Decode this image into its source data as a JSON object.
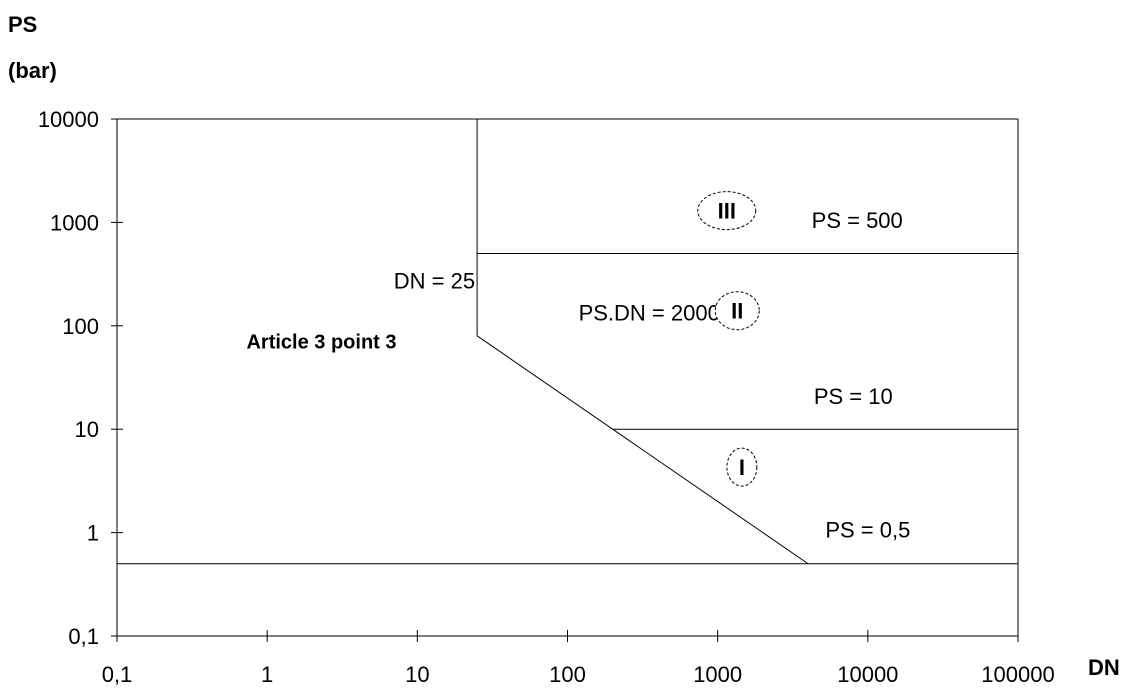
{
  "chart_data": {
    "type": "line",
    "ylabel_line1": "PS",
    "ylabel_line2": "(bar)",
    "xlabel": "DN",
    "x_scale": "log",
    "y_scale": "log",
    "xlim": [
      0.1,
      100000
    ],
    "ylim": [
      0.1,
      10000
    ],
    "x_tick_values": [
      0.1,
      1,
      10,
      100,
      1000,
      10000,
      100000
    ],
    "x_tick_labels": [
      "0,1",
      "1",
      "10",
      "100",
      "1000",
      "10000",
      "100000"
    ],
    "y_tick_values": [
      0.1,
      1,
      10,
      100,
      1000,
      10000
    ],
    "y_tick_labels": [
      "0,1",
      "1",
      "10",
      "100",
      "1000",
      "10000"
    ],
    "grid": false,
    "lines": [
      {
        "x": [
          0.1,
          100000
        ],
        "y": [
          0.5,
          0.5
        ]
      },
      {
        "x": [
          25,
          25
        ],
        "y": [
          80,
          10000
        ]
      },
      {
        "x": [
          25,
          4000
        ],
        "y": [
          80,
          0.5
        ]
      },
      {
        "x": [
          200,
          100000
        ],
        "y": [
          10,
          10
        ]
      },
      {
        "x": [
          25,
          100000
        ],
        "y": [
          500,
          500
        ]
      }
    ],
    "annotations": [
      {
        "text": "PS = 500",
        "x": 8500,
        "y": 880,
        "style": "normal"
      },
      {
        "text": "DN = 25",
        "x": 13,
        "y": 230,
        "style": "normal"
      },
      {
        "text": "PS.DN = 2000",
        "x": 350,
        "y": 112,
        "style": "normal"
      },
      {
        "text": "Article 3 point 3",
        "x": 2.3,
        "y": 60,
        "style": "bold"
      },
      {
        "text": "PS = 10",
        "x": 8000,
        "y": 17.5,
        "style": "normal"
      },
      {
        "text": "PS = 0,5",
        "x": 10000,
        "y": 0.9,
        "style": "normal"
      }
    ],
    "regions": [
      {
        "label": "III",
        "x": 1150,
        "y": 1300
      },
      {
        "label": "II",
        "x": 1350,
        "y": 140
      },
      {
        "label": "I",
        "x": 1450,
        "y": 4.3
      }
    ]
  }
}
